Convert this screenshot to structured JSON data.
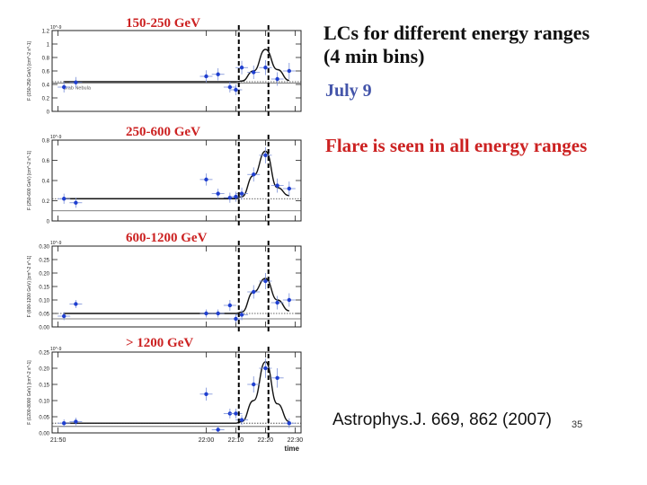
{
  "slide": {
    "title_line1": "LCs for different energy ranges",
    "title_line2": "(4 min bins)",
    "date": "July 9",
    "note": "Flare is seen in all energy ranges",
    "citation": "Astrophys.J. 669, 862 (2007)",
    "page_number": "35"
  },
  "colors": {
    "point": "#1f3fd0",
    "error_bar": "#7a8fd8",
    "fit_curve": "#111111",
    "energy_label": "#cc2222",
    "date": "#4455aa",
    "note": "#cc2222"
  },
  "chart_data": [
    {
      "type": "scatter",
      "title": "150-250 GeV",
      "ylabel": "F (150-250 GeV) [cm^-2 s^-1]",
      "scale": "10^-9",
      "ylim": [
        0,
        1.2
      ],
      "yticks": [
        "0",
        "0.2",
        "0.4",
        "0.6",
        "0.8",
        "1",
        "1.2"
      ],
      "x": [
        21.52,
        21.56,
        22.0,
        22.04,
        22.08,
        22.1,
        22.12,
        22.16,
        22.2,
        22.24,
        22.28
      ],
      "values": [
        0.36,
        0.43,
        0.52,
        0.55,
        0.36,
        0.32,
        0.65,
        0.58,
        0.65,
        0.48,
        0.6
      ],
      "errors": [
        0.08,
        0.08,
        0.09,
        0.09,
        0.08,
        0.08,
        0.1,
        0.1,
        0.11,
        0.1,
        0.12
      ],
      "fit": [
        0.44,
        0.44,
        0.44,
        0.44,
        0.44,
        0.44,
        0.45,
        0.6,
        0.92,
        0.62,
        0.46
      ],
      "reference_line": 0.42,
      "reference_label": "Crab Nebula"
    },
    {
      "type": "scatter",
      "title": "250-600 GeV",
      "ylabel": "F (250-600 GeV) [cm^-2 s^-1]",
      "scale": "10^-9",
      "ylim": [
        0,
        0.8
      ],
      "yticks": [
        "0",
        "0.2",
        "0.4",
        "0.6",
        "0.8"
      ],
      "x": [
        21.52,
        21.56,
        22.0,
        22.04,
        22.08,
        22.1,
        22.12,
        22.16,
        22.2,
        22.24,
        22.28
      ],
      "values": [
        0.22,
        0.18,
        0.41,
        0.27,
        0.23,
        0.24,
        0.27,
        0.46,
        0.65,
        0.35,
        0.32
      ],
      "errors": [
        0.05,
        0.05,
        0.06,
        0.05,
        0.05,
        0.05,
        0.06,
        0.07,
        0.08,
        0.07,
        0.07
      ],
      "fit": [
        0.22,
        0.22,
        0.22,
        0.22,
        0.22,
        0.22,
        0.24,
        0.45,
        0.69,
        0.33,
        0.25
      ],
      "reference_line": 0.1,
      "reference_label": ""
    },
    {
      "type": "scatter",
      "title": "600-1200 GeV",
      "ylabel": "F (600-1200 GeV) [cm^-2 s^-1]",
      "scale": "10^-9",
      "ylim": [
        0,
        0.3
      ],
      "yticks": [
        "0.00",
        "0.05",
        "0.10",
        "0.15",
        "0.20",
        "0.25",
        "0.30"
      ],
      "x": [
        21.52,
        21.56,
        22.0,
        22.04,
        22.08,
        22.1,
        22.12,
        22.16,
        22.2,
        22.24,
        22.28
      ],
      "values": [
        0.04,
        0.085,
        0.05,
        0.05,
        0.08,
        0.03,
        0.045,
        0.13,
        0.17,
        0.09,
        0.1
      ],
      "errors": [
        0.015,
        0.015,
        0.015,
        0.015,
        0.02,
        0.015,
        0.02,
        0.025,
        0.03,
        0.025,
        0.025
      ],
      "fit": [
        0.05,
        0.05,
        0.05,
        0.05,
        0.05,
        0.05,
        0.055,
        0.13,
        0.18,
        0.1,
        0.06
      ],
      "reference_line": 0.03,
      "reference_label": ""
    },
    {
      "type": "scatter",
      "title": "> 1200 GeV",
      "ylabel": "F (1200-8000 GeV) [cm^-2 s^-1]",
      "scale": "10^-9",
      "ylim": [
        0,
        0.25
      ],
      "yticks": [
        "0.00",
        "0.05",
        "0.10",
        "0.15",
        "0.20",
        "0.25"
      ],
      "x": [
        21.52,
        21.56,
        22.0,
        22.04,
        22.08,
        22.1,
        22.12,
        22.16,
        22.2,
        22.24,
        22.28
      ],
      "values": [
        0.03,
        0.035,
        0.12,
        0.01,
        0.06,
        0.06,
        0.04,
        0.15,
        0.2,
        0.17,
        0.03
      ],
      "errors": [
        0.012,
        0.012,
        0.02,
        0.01,
        0.015,
        0.015,
        0.015,
        0.025,
        0.03,
        0.03,
        0.015
      ],
      "fit": [
        0.03,
        0.03,
        0.03,
        0.03,
        0.03,
        0.03,
        0.035,
        0.1,
        0.22,
        0.09,
        0.035
      ],
      "reference_line": 0.02,
      "reference_label": ""
    }
  ],
  "time_axis": {
    "xlim": [
      21.48,
      22.32
    ],
    "tick_values": [
      21.5,
      22.0,
      22.1,
      22.2,
      22.3
    ],
    "tick_labels": [
      "21:50",
      "22:00",
      "22:10",
      "22:20",
      "22:30"
    ],
    "label": "time"
  },
  "flare_window": [
    22.11,
    22.21
  ]
}
